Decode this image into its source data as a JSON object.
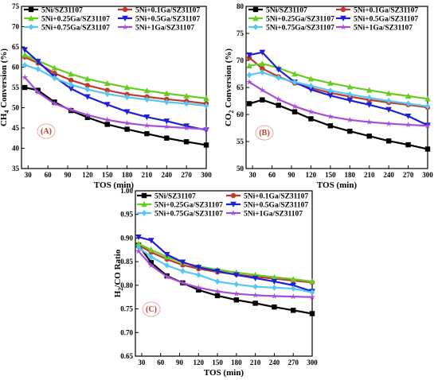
{
  "chart_data": [
    {
      "type": "line",
      "panel_label": "(A)",
      "xlabel": "TOS (min)",
      "ylabel": "CH4 Conversion (%)",
      "ylabel_main": "CH",
      "ylabel_sub": "4",
      "ylabel_rest": " Conversion (%)",
      "xlim": [
        20,
        300
      ],
      "ylim": [
        35,
        75
      ],
      "xticks": [
        30,
        60,
        90,
        120,
        150,
        180,
        210,
        240,
        270,
        300
      ],
      "yticks": [
        35,
        40,
        45,
        50,
        55,
        60,
        65,
        70,
        75
      ],
      "x": [
        25,
        45,
        70,
        95,
        120,
        150,
        180,
        210,
        240,
        270,
        300
      ],
      "series": [
        {
          "name": "5Ni/SZ31107",
          "color": "#000000",
          "marker": "square",
          "values": [
            55,
            54.3,
            51.4,
            49.3,
            47.6,
            45.9,
            44.7,
            43.6,
            42.5,
            41.6,
            40.8
          ]
        },
        {
          "name": "5Ni+0.1Ga/SZ31107",
          "color": "#c0392b",
          "marker": "circle",
          "values": [
            62.5,
            61,
            58.5,
            56.8,
            55.5,
            54.3,
            53.3,
            52.7,
            52.1,
            51.6,
            51
          ]
        },
        {
          "name": "5Ni+0.25Ga/SZ31107",
          "color": "#66cc22",
          "marker": "triangle-up",
          "values": [
            63,
            61.6,
            59.8,
            58.3,
            57.1,
            56,
            55,
            54.2,
            53.5,
            52.9,
            52.3
          ]
        },
        {
          "name": "5Ni+0.5Ga/SZ31107",
          "color": "#1f1fd6",
          "marker": "triangle-down",
          "values": [
            64.3,
            61.4,
            57.6,
            54.7,
            52.7,
            50.8,
            49,
            47.7,
            46.7,
            45.5,
            44.5
          ]
        },
        {
          "name": "5Ni+0.75Ga/SZ31107",
          "color": "#55c7f0",
          "marker": "diamond",
          "values": [
            60.5,
            59.5,
            57.3,
            55.7,
            54.5,
            53.4,
            52.6,
            52,
            51.4,
            51,
            50.5
          ]
        },
        {
          "name": "5Ni+1Ga/SZ31107",
          "color": "#a64dd9",
          "marker": "star",
          "values": [
            57.5,
            53.8,
            51,
            49.5,
            48.2,
            47,
            46.2,
            45.6,
            45.3,
            45,
            44.7
          ]
        }
      ]
    },
    {
      "type": "line",
      "panel_label": "(B)",
      "xlabel": "TOS (min)",
      "ylabel": "CO2 Conversion (%)",
      "ylabel_main": "CO",
      "ylabel_sub": "2",
      "ylabel_rest": " Conversion (%)",
      "xlim": [
        20,
        300
      ],
      "ylim": [
        50,
        80
      ],
      "xticks": [
        30,
        60,
        90,
        120,
        150,
        180,
        210,
        240,
        270,
        300
      ],
      "yticks": [
        50,
        55,
        60,
        65,
        70,
        75,
        80
      ],
      "x": [
        25,
        45,
        70,
        95,
        120,
        150,
        180,
        210,
        240,
        270,
        300
      ],
      "series": [
        {
          "name": "5Ni/SZ31107",
          "color": "#000000",
          "marker": "square",
          "values": [
            62,
            62.7,
            61.7,
            60.5,
            59.2,
            57.9,
            56.9,
            56,
            55.1,
            54.4,
            53.6
          ]
        },
        {
          "name": "5Ni+0.1Ga/SZ31107",
          "color": "#c0392b",
          "marker": "circle",
          "values": [
            70.5,
            68.5,
            67,
            65.8,
            64.9,
            64,
            63.3,
            62.7,
            62.2,
            61.8,
            61.3
          ]
        },
        {
          "name": "5Ni+0.25Ga/SZ31107",
          "color": "#66cc22",
          "marker": "triangle-up",
          "values": [
            69,
            69.4,
            68.6,
            67.5,
            66.6,
            65.8,
            65.1,
            64.5,
            63.9,
            63.4,
            62.9
          ]
        },
        {
          "name": "5Ni+0.5Ga/SZ31107",
          "color": "#1f1fd6",
          "marker": "triangle-down",
          "values": [
            71,
            71.5,
            68.3,
            66,
            64.6,
            63.5,
            62.6,
            61.8,
            60.9,
            59.7,
            58
          ]
        },
        {
          "name": "5Ni+0.75Ga/SZ31107",
          "color": "#55c7f0",
          "marker": "diamond",
          "values": [
            67.3,
            67.8,
            66.8,
            66,
            65.3,
            64.4,
            63.7,
            63.1,
            62.5,
            62,
            61.5
          ]
        },
        {
          "name": "5Ni+1Ga/SZ31107",
          "color": "#a64dd9",
          "marker": "star",
          "values": [
            66,
            64.5,
            62.8,
            61.5,
            60.5,
            59.6,
            59,
            58.6,
            58.3,
            58.1,
            57.9
          ]
        }
      ]
    },
    {
      "type": "line",
      "panel_label": "(C)",
      "xlabel": "TOS (min)",
      "ylabel": "H2/CO Ratio",
      "ylabel_main": "H",
      "ylabel_sub": "2",
      "ylabel_rest": "/CO Ratio",
      "xlim": [
        20,
        300
      ],
      "ylim": [
        0.65,
        1.0
      ],
      "xticks": [
        30,
        60,
        90,
        120,
        150,
        180,
        210,
        240,
        270,
        300
      ],
      "yticks": [
        0.65,
        0.7,
        0.75,
        0.8,
        0.85,
        0.9,
        0.95,
        1.0
      ],
      "x": [
        25,
        45,
        70,
        95,
        120,
        150,
        180,
        210,
        240,
        270,
        300
      ],
      "series": [
        {
          "name": "5Ni/SZ31107",
          "color": "#000000",
          "marker": "square",
          "values": [
            0.885,
            0.848,
            0.82,
            0.805,
            0.79,
            0.778,
            0.769,
            0.762,
            0.754,
            0.747,
            0.74
          ]
        },
        {
          "name": "5Ni+0.1Ga/SZ31107",
          "color": "#c0392b",
          "marker": "circle",
          "values": [
            0.885,
            0.87,
            0.855,
            0.843,
            0.835,
            0.828,
            0.823,
            0.818,
            0.814,
            0.81,
            0.806
          ]
        },
        {
          "name": "5Ni+0.25Ga/SZ31107",
          "color": "#66cc22",
          "marker": "triangle-up",
          "values": [
            0.888,
            0.875,
            0.86,
            0.848,
            0.84,
            0.833,
            0.827,
            0.822,
            0.817,
            0.813,
            0.808
          ]
        },
        {
          "name": "5Ni+0.5Ga/SZ31107",
          "color": "#1f1fd6",
          "marker": "triangle-down",
          "values": [
            0.902,
            0.895,
            0.865,
            0.849,
            0.838,
            0.83,
            0.822,
            0.815,
            0.808,
            0.8,
            0.787
          ]
        },
        {
          "name": "5Ni+0.75Ga/SZ31107",
          "color": "#55c7f0",
          "marker": "diamond",
          "values": [
            0.88,
            0.86,
            0.842,
            0.83,
            0.822,
            0.808,
            0.802,
            0.797,
            0.795,
            0.793,
            0.785
          ]
        },
        {
          "name": "5Ni+1Ga/SZ31107",
          "color": "#a64dd9",
          "marker": "star",
          "values": [
            0.872,
            0.842,
            0.818,
            0.805,
            0.795,
            0.787,
            0.782,
            0.779,
            0.777,
            0.776,
            0.775
          ]
        }
      ]
    }
  ]
}
